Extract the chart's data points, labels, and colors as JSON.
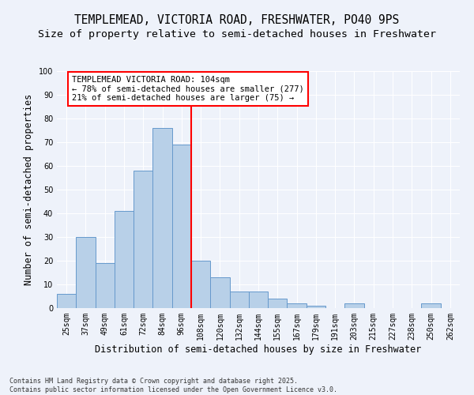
{
  "title": "TEMPLEMEAD, VICTORIA ROAD, FRESHWATER, PO40 9PS",
  "subtitle": "Size of property relative to semi-detached houses in Freshwater",
  "xlabel": "Distribution of semi-detached houses by size in Freshwater",
  "ylabel": "Number of semi-detached properties",
  "categories": [
    "25sqm",
    "37sqm",
    "49sqm",
    "61sqm",
    "72sqm",
    "84sqm",
    "96sqm",
    "108sqm",
    "120sqm",
    "132sqm",
    "144sqm",
    "155sqm",
    "167sqm",
    "179sqm",
    "191sqm",
    "203sqm",
    "215sqm",
    "227sqm",
    "238sqm",
    "250sqm",
    "262sqm"
  ],
  "values": [
    6,
    30,
    19,
    41,
    58,
    76,
    69,
    20,
    13,
    7,
    7,
    4,
    2,
    1,
    0,
    2,
    0,
    0,
    0,
    2,
    0
  ],
  "bar_color": "#b8d0e8",
  "bar_edge_color": "#6699cc",
  "red_line_x": 6.5,
  "annotation_title": "TEMPLEMEAD VICTORIA ROAD: 104sqm",
  "annotation_line1": "← 78% of semi-detached houses are smaller (277)",
  "annotation_line2": "21% of semi-detached houses are larger (75) →",
  "footnote1": "Contains HM Land Registry data © Crown copyright and database right 2025.",
  "footnote2": "Contains public sector information licensed under the Open Government Licence v3.0.",
  "ylim": [
    0,
    100
  ],
  "yticks": [
    0,
    10,
    20,
    30,
    40,
    50,
    60,
    70,
    80,
    90,
    100
  ],
  "background_color": "#eef2fa",
  "grid_color": "#ffffff",
  "title_fontsize": 10.5,
  "subtitle_fontsize": 9.5,
  "axis_label_fontsize": 8.5,
  "tick_fontsize": 7,
  "annotation_fontsize": 7.5,
  "footnote_fontsize": 6
}
